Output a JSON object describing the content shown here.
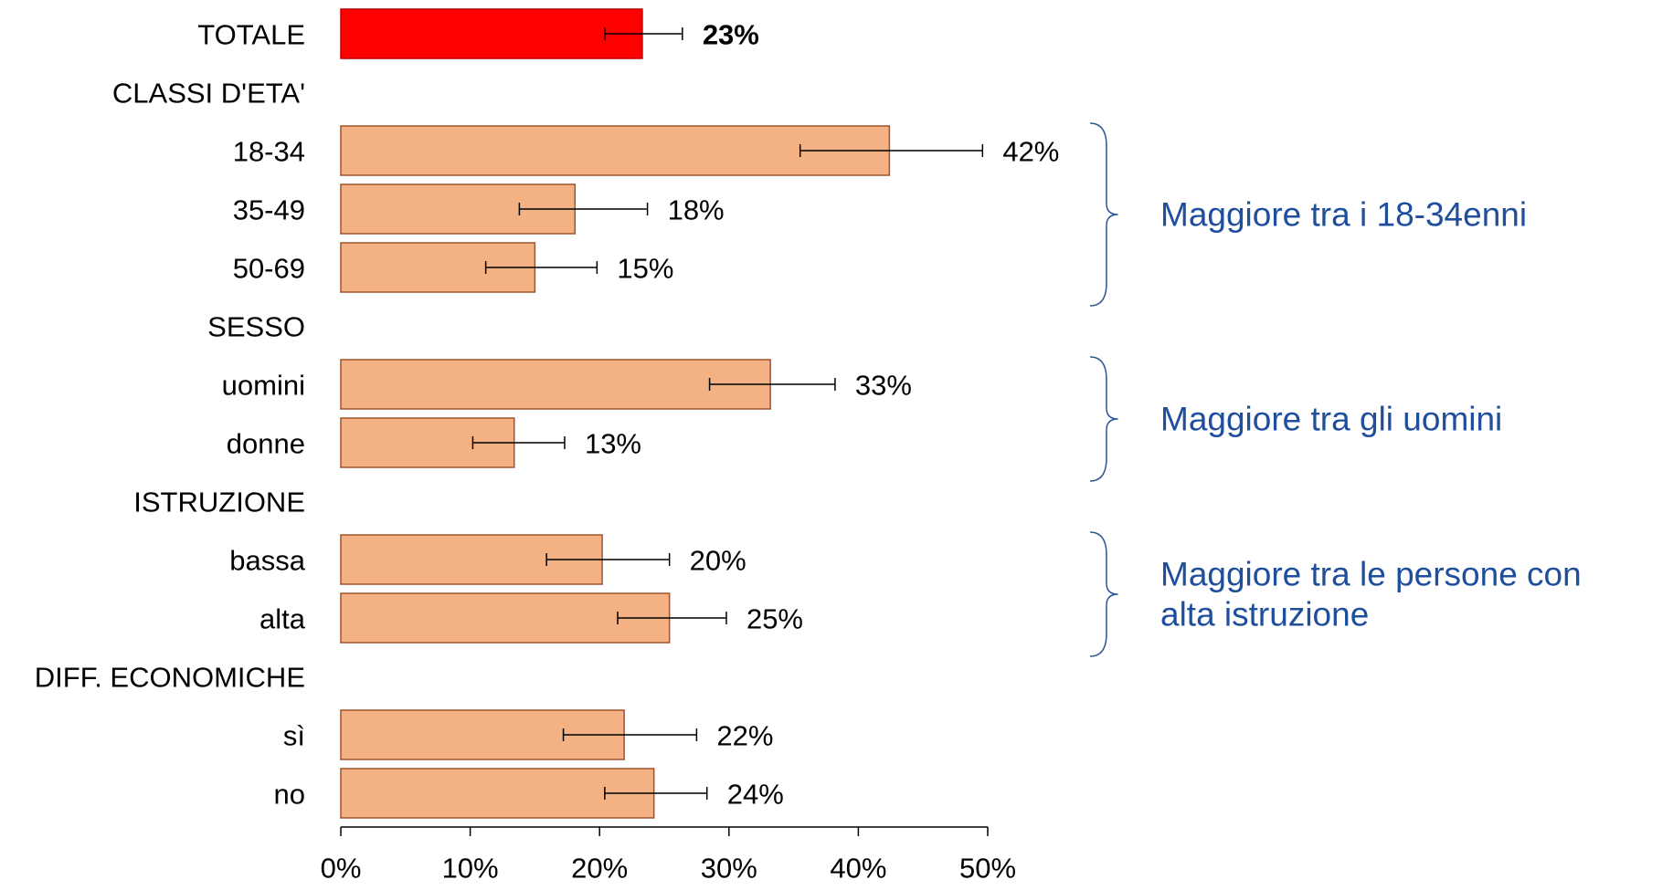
{
  "chart_data": {
    "type": "bar",
    "orientation": "horizontal",
    "title": "",
    "xlabel": "",
    "ylabel": "",
    "xlim": [
      0,
      50
    ],
    "x_ticks": [
      "0%",
      "10%",
      "20%",
      "30%",
      "40%",
      "50%"
    ],
    "grid": false,
    "rows": [
      {
        "label": "TOTALE",
        "value": 23.3,
        "error_low": 20.4,
        "error_high": 26.4,
        "value_label": "23%",
        "kind": "total"
      },
      {
        "label": "CLASSI D'ETA'",
        "kind": "group"
      },
      {
        "label": "18-34",
        "value": 42.4,
        "error_low": 35.5,
        "error_high": 49.6,
        "value_label": "42%",
        "kind": "bar"
      },
      {
        "label": "35-49",
        "value": 18.1,
        "error_low": 13.8,
        "error_high": 23.7,
        "value_label": "18%",
        "kind": "bar"
      },
      {
        "label": "50-69",
        "value": 15.0,
        "error_low": 11.2,
        "error_high": 19.8,
        "value_label": "15%",
        "kind": "bar"
      },
      {
        "label": "SESSO",
        "kind": "group"
      },
      {
        "label": "uomini",
        "value": 33.2,
        "error_low": 28.5,
        "error_high": 38.2,
        "value_label": "33%",
        "kind": "bar"
      },
      {
        "label": "donne",
        "value": 13.4,
        "error_low": 10.2,
        "error_high": 17.3,
        "value_label": "13%",
        "kind": "bar"
      },
      {
        "label": "ISTRUZIONE",
        "kind": "group"
      },
      {
        "label": "bassa",
        "value": 20.2,
        "error_low": 15.9,
        "error_high": 25.4,
        "value_label": "20%",
        "kind": "bar"
      },
      {
        "label": "alta",
        "value": 25.4,
        "error_low": 21.4,
        "error_high": 29.8,
        "value_label": "25%",
        "kind": "bar"
      },
      {
        "label": "DIFF. ECONOMICHE",
        "kind": "group"
      },
      {
        "label": "sì",
        "value": 21.9,
        "error_low": 17.2,
        "error_high": 27.5,
        "value_label": "22%",
        "kind": "bar"
      },
      {
        "label": "no",
        "value": 24.2,
        "error_low": 20.4,
        "error_high": 28.3,
        "value_label": "24%",
        "kind": "bar"
      }
    ],
    "annotations": [
      {
        "lines": [
          "Maggiore tra i 18-34enni"
        ],
        "rows": [
          "18-34",
          "50-69"
        ]
      },
      {
        "lines": [
          "Maggiore tra gli uomini"
        ],
        "rows": [
          "uomini",
          "donne"
        ]
      },
      {
        "lines": [
          "Maggiore tra le persone con",
          "alta istruzione"
        ],
        "rows": [
          "bassa",
          "alta"
        ]
      }
    ]
  },
  "colors": {
    "total_bar": "#ff0000",
    "bar_fill": "#f4b183",
    "bar_stroke": "#a0522d",
    "annotation_text": "#1f4e9c",
    "brace": "#2f5597",
    "text": "#000000"
  }
}
